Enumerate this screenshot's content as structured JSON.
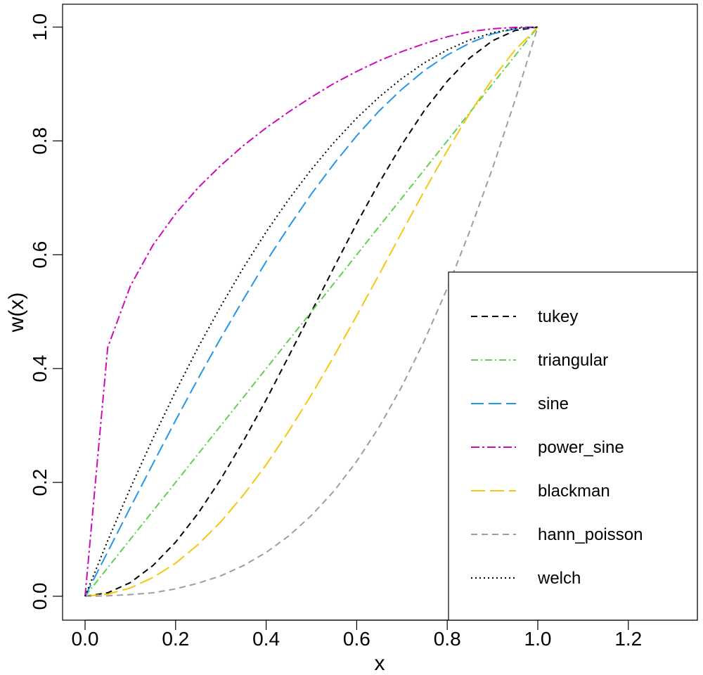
{
  "chart_data": {
    "type": "line",
    "xlabel": "x",
    "ylabel": "w(x)",
    "xlim": [
      -0.05,
      1.35
    ],
    "ylim": [
      -0.04,
      1.04
    ],
    "x_ticks": [
      "0.0",
      "0.2",
      "0.4",
      "0.6",
      "0.8",
      "1.0",
      "1.2"
    ],
    "y_ticks": [
      "0.0",
      "0.2",
      "0.4",
      "0.6",
      "0.8",
      "1.0"
    ],
    "grid": false,
    "legend_position": "bottom-right",
    "x": [
      0,
      0.05,
      0.1,
      0.15,
      0.2,
      0.25,
      0.3,
      0.35,
      0.4,
      0.45,
      0.5,
      0.55,
      0.6,
      0.65,
      0.7,
      0.75,
      0.8,
      0.85,
      0.9,
      0.95,
      1.0
    ],
    "series": [
      {
        "name": "tukey",
        "color": "#000000",
        "dash": "9 6",
        "values": [
          0,
          0.006,
          0.024,
          0.054,
          0.095,
          0.146,
          0.206,
          0.273,
          0.345,
          0.422,
          0.5,
          0.578,
          0.655,
          0.727,
          0.794,
          0.854,
          0.905,
          0.946,
          0.976,
          0.994,
          1.0
        ]
      },
      {
        "name": "triangular",
        "color": "#61D04F",
        "dash": "10 4 2 4",
        "values": [
          0,
          0.05,
          0.1,
          0.15,
          0.2,
          0.25,
          0.3,
          0.35,
          0.4,
          0.45,
          0.5,
          0.55,
          0.6,
          0.65,
          0.7,
          0.75,
          0.8,
          0.85,
          0.9,
          0.95,
          1.0
        ]
      },
      {
        "name": "sine",
        "color": "#2297E6",
        "dash": "18 7",
        "values": [
          0,
          0.078,
          0.156,
          0.233,
          0.309,
          0.383,
          0.454,
          0.522,
          0.588,
          0.649,
          0.707,
          0.76,
          0.809,
          0.853,
          0.891,
          0.924,
          0.951,
          0.972,
          0.988,
          0.997,
          1.0
        ]
      },
      {
        "name": "power_sine",
        "color": "#CD0BBC",
        "dash": "12 4 3 4",
        "values": [
          0,
          0.437,
          0.545,
          0.617,
          0.672,
          0.718,
          0.757,
          0.792,
          0.823,
          0.851,
          0.877,
          0.901,
          0.922,
          0.941,
          0.957,
          0.971,
          0.983,
          0.992,
          0.997,
          0.9995,
          1.0
        ]
      },
      {
        "name": "blackman",
        "color": "#F5C710",
        "dash": "20 7",
        "values": [
          0,
          0.0037,
          0.0146,
          0.033,
          0.058,
          0.091,
          0.131,
          0.178,
          0.231,
          0.29,
          0.354,
          0.422,
          0.493,
          0.566,
          0.64,
          0.713,
          0.783,
          0.849,
          0.909,
          0.96,
          1.0
        ]
      },
      {
        "name": "hann_poisson",
        "color": "#9E9E9E",
        "dash": "9 6",
        "values": [
          0,
          0.0007,
          0.003,
          0.006,
          0.013,
          0.023,
          0.036,
          0.054,
          0.077,
          0.106,
          0.142,
          0.185,
          0.237,
          0.298,
          0.369,
          0.45,
          0.541,
          0.642,
          0.752,
          0.872,
          1.0
        ]
      },
      {
        "name": "welch",
        "color": "#000000",
        "dash": "2 4",
        "values": [
          0,
          0.0975,
          0.19,
          0.2775,
          0.36,
          0.4375,
          0.51,
          0.5775,
          0.64,
          0.6975,
          0.75,
          0.7975,
          0.84,
          0.8775,
          0.91,
          0.9375,
          0.96,
          0.9775,
          0.99,
          0.9975,
          1.0
        ]
      }
    ]
  }
}
